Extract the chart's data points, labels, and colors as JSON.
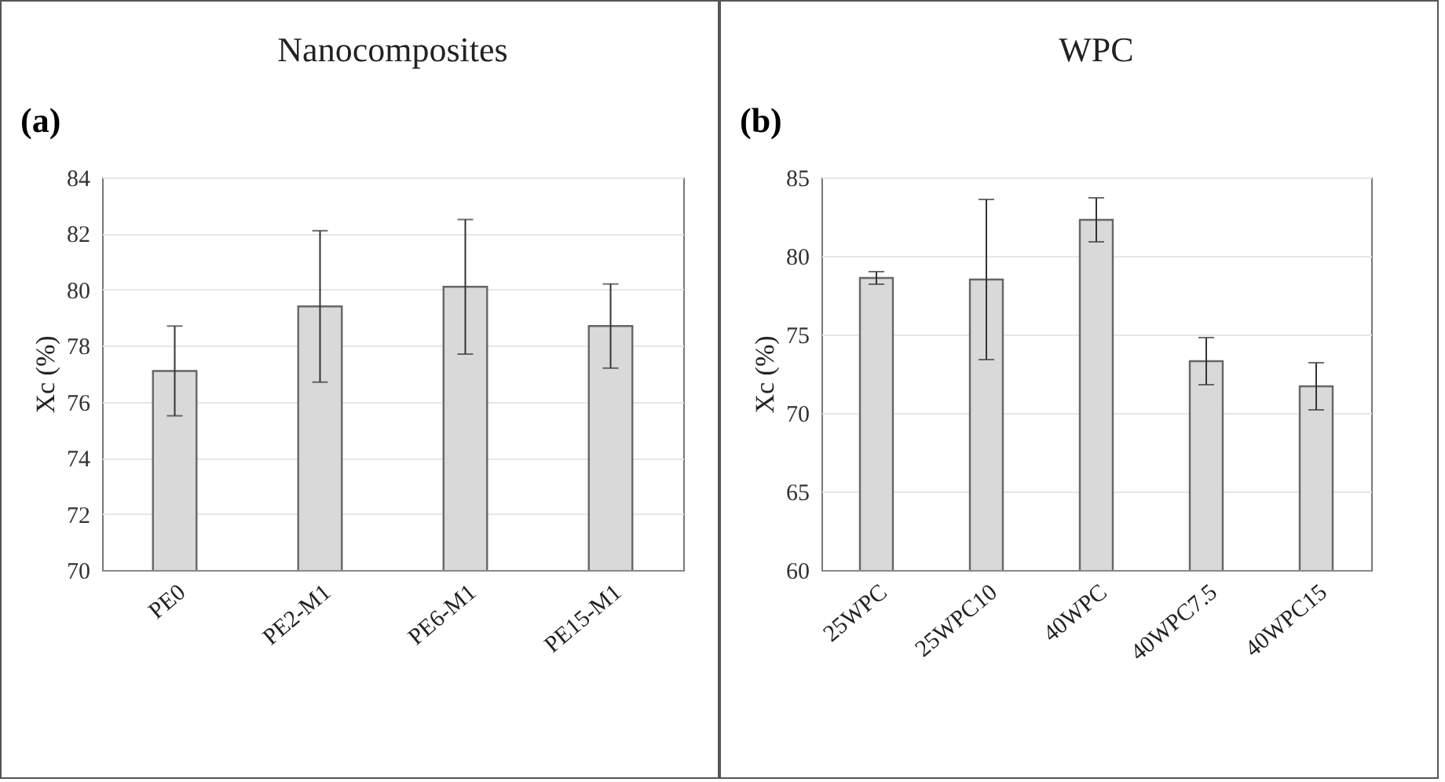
{
  "chart_data": [
    {
      "type": "bar",
      "title": "Nanocomposites",
      "ylabel": "Xc (%)",
      "annotations": [
        "(a)"
      ],
      "categories": [
        "PE0",
        "PE2-M1",
        "PE6-M1",
        "PE15-M1"
      ],
      "values": [
        77.1,
        79.4,
        80.1,
        78.7
      ],
      "errors": [
        1.6,
        2.7,
        2.4,
        1.5
      ],
      "color": "#d9d9d9",
      "ylim": [
        70,
        84
      ],
      "yticks": [
        70,
        72,
        74,
        76,
        78,
        80,
        82,
        84
      ],
      "grid": "y"
    },
    {
      "type": "bar",
      "title": "WPC",
      "ylabel": "Xc (%)",
      "annotations": [
        "(b)"
      ],
      "categories": [
        "25WPC",
        "25WPC10",
        "40WPC",
        "40WPC7.5",
        "40WPC15"
      ],
      "values": [
        78.6,
        78.5,
        82.3,
        73.3,
        71.7
      ],
      "errors": [
        0.4,
        5.1,
        1.4,
        1.5,
        1.5
      ],
      "color": "#d9d9d9",
      "ylim": [
        60,
        85
      ],
      "yticks": [
        60,
        65,
        70,
        75,
        80,
        85
      ],
      "grid": "y"
    }
  ]
}
